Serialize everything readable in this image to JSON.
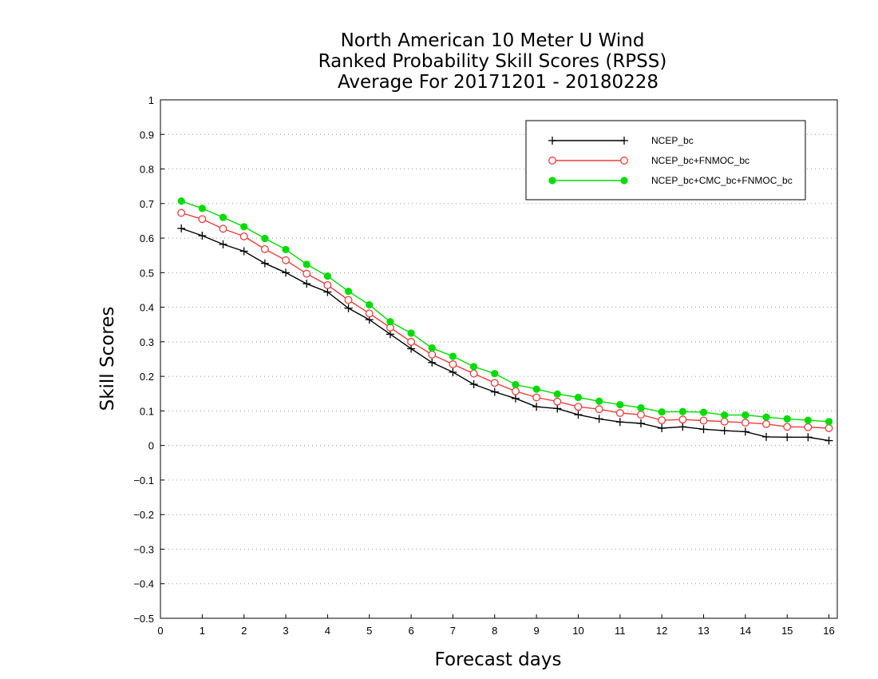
{
  "chart_data": {
    "type": "line",
    "title": [
      "North American 10 Meter U Wind",
      "Ranked Probability Skill Scores (RPSS)",
      "Average For 20171201 - 20180228"
    ],
    "xlabel": "Forecast days",
    "ylabel": "Skill Scores",
    "xlim": [
      0,
      16.2
    ],
    "ylim": [
      -0.5,
      1
    ],
    "xticks": [
      "0",
      "1",
      "2",
      "3",
      "4",
      "5",
      "6",
      "7",
      "8",
      "9",
      "10",
      "11",
      "12",
      "13",
      "14",
      "15",
      "16"
    ],
    "yticks": [
      "−0.5",
      "−0.4",
      "−0.3",
      "−0.2",
      "−0.1",
      "0",
      "0.1",
      "0.2",
      "0.3",
      "0.4",
      "0.5",
      "0.6",
      "0.7",
      "0.8",
      "0.9",
      "1"
    ],
    "grid": "horizontal dotted",
    "legend_position": "top-right",
    "x": [
      0.5,
      1,
      1.5,
      2,
      2.5,
      3,
      3.5,
      4,
      4.5,
      5,
      5.5,
      6,
      6.5,
      7,
      7.5,
      8,
      8.5,
      9,
      9.5,
      10,
      10.5,
      11,
      11.5,
      12,
      12.5,
      13,
      13.5,
      14,
      14.5,
      15,
      15.5,
      16
    ],
    "series": [
      {
        "name": "NCEP_bc",
        "color": "#000000",
        "marker": "plus",
        "values": [
          0.628,
          0.607,
          0.582,
          0.562,
          0.527,
          0.5,
          0.468,
          0.444,
          0.397,
          0.364,
          0.322,
          0.28,
          0.24,
          0.212,
          0.177,
          0.155,
          0.136,
          0.112,
          0.107,
          0.089,
          0.077,
          0.068,
          0.064,
          0.05,
          0.054,
          0.047,
          0.043,
          0.04,
          0.025,
          0.024,
          0.024,
          0.014
        ]
      },
      {
        "name": "NCEP_bc+FNMOC_bc",
        "color": "#f03c3c",
        "marker": "open-circle",
        "values": [
          0.673,
          0.655,
          0.627,
          0.605,
          0.568,
          0.536,
          0.497,
          0.464,
          0.421,
          0.382,
          0.341,
          0.3,
          0.263,
          0.235,
          0.208,
          0.181,
          0.157,
          0.139,
          0.127,
          0.112,
          0.105,
          0.094,
          0.089,
          0.073,
          0.075,
          0.072,
          0.069,
          0.066,
          0.062,
          0.054,
          0.053,
          0.05
        ]
      },
      {
        "name": "NCEP_bc+CMC_bc+FNMOC_bc",
        "color": "#00dc00",
        "marker": "filled-circle",
        "values": [
          0.707,
          0.686,
          0.66,
          0.633,
          0.599,
          0.567,
          0.524,
          0.49,
          0.446,
          0.407,
          0.358,
          0.325,
          0.282,
          0.258,
          0.228,
          0.208,
          0.176,
          0.163,
          0.149,
          0.139,
          0.128,
          0.118,
          0.109,
          0.097,
          0.098,
          0.096,
          0.088,
          0.088,
          0.082,
          0.077,
          0.073,
          0.069
        ]
      }
    ]
  }
}
